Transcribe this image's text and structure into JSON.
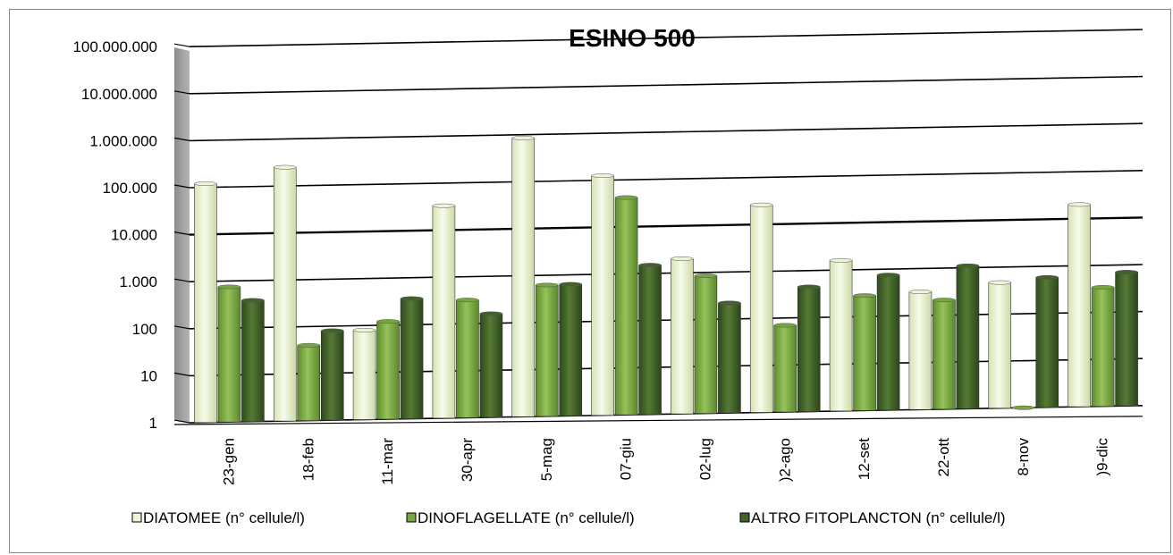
{
  "chart_data": {
    "type": "bar",
    "title": "ESINO 500",
    "xlabel": "",
    "ylabel": "",
    "yscale": "log",
    "ylim": [
      1,
      100000000
    ],
    "y_ticks": [
      "1",
      "10",
      "100",
      "1.000",
      "10.000",
      "100.000",
      "1.000.000",
      "10.000.000",
      "100.000.000"
    ],
    "categories": [
      "23-gen",
      "18-feb",
      "11-mar",
      "30-apr",
      "5-mag",
      "07-giu",
      "02-lug",
      ")2-ago",
      "12-set",
      "22-ott",
      "8-nov",
      ")9-dic"
    ],
    "series": [
      {
        "name": "DIATOMEE (n° cellule/l)",
        "color": "#ecf3d8",
        "values": [
          120000,
          250000,
          80,
          33000,
          850000,
          125000,
          2000,
          26000,
          1600,
          320,
          470,
          20000
        ]
      },
      {
        "name": "DINOFLAGELLATE (n° cellule/l)",
        "color": "#77a640",
        "values": [
          750,
          40,
          120,
          320,
          620,
          42000,
          850,
          70,
          280,
          210,
          1,
          340
        ]
      },
      {
        "name": "ALTRO FITOPLANCTON (n° cellule/l)",
        "color": "#42622a",
        "values": [
          380,
          80,
          360,
          160,
          630,
          1500,
          220,
          450,
          750,
          1100,
          580,
          700
        ]
      }
    ],
    "grid": true,
    "legend_position": "bottom"
  }
}
